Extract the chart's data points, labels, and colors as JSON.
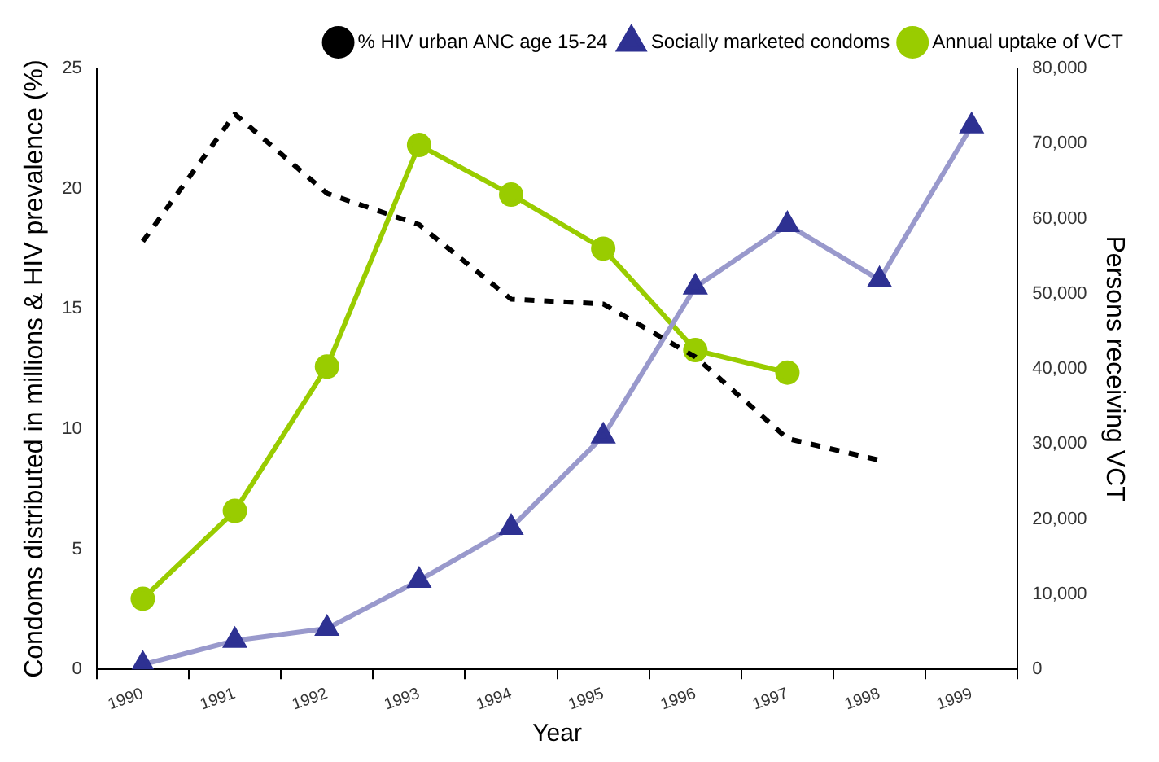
{
  "chart_data": {
    "type": "line",
    "xlabel": "Year",
    "ylabel": "Condoms distributed in millions & HIV prevalence (%)",
    "y2label": "Persons receiving VCT",
    "categories": [
      "1990",
      "1991",
      "1992",
      "1993",
      "1994",
      "1995",
      "1996",
      "1997",
      "1998",
      "1999"
    ],
    "series": [
      {
        "name": "% HIV urban ANC age 15-24",
        "color": "#000000",
        "line_style": "dashed",
        "marker": "none",
        "values": [
          17.8,
          23.1,
          19.8,
          18.5,
          15.4,
          15.2,
          13.0,
          9.6,
          8.7,
          null
        ]
      },
      {
        "name": "Socially marketed condoms",
        "color": "#9999cc",
        "marker": "triangle",
        "values": [
          0.2,
          1.2,
          1.7,
          3.7,
          5.9,
          9.7,
          15.9,
          18.5,
          16.2,
          22.6
        ]
      },
      {
        "name": "Annual uptake of VCT",
        "color": "#99cc00",
        "marker": "circle",
        "axis": "y2",
        "values": [
          9400,
          21100,
          40300,
          69800,
          63200,
          56000,
          42500,
          39500,
          null,
          null
        ]
      }
    ],
    "ylim": [
      0,
      25
    ],
    "yticks": [
      0,
      5,
      10,
      15,
      20,
      25
    ],
    "y2lim": [
      0,
      80000
    ],
    "y2ticks": [
      0,
      {
        "value": 10000,
        "label": "10,000"
      },
      {
        "value": 20000,
        "label": "20,000"
      },
      {
        "value": 30000,
        "label": "30,000"
      },
      {
        "value": 40000,
        "label": "40,000"
      },
      {
        "value": 50000,
        "label": "50,000"
      },
      {
        "value": 60000,
        "label": "60,000"
      },
      {
        "value": 70000,
        "label": "70,000"
      },
      {
        "value": 80000,
        "label": "80,000"
      }
    ],
    "grid": false,
    "legend": "top right"
  }
}
